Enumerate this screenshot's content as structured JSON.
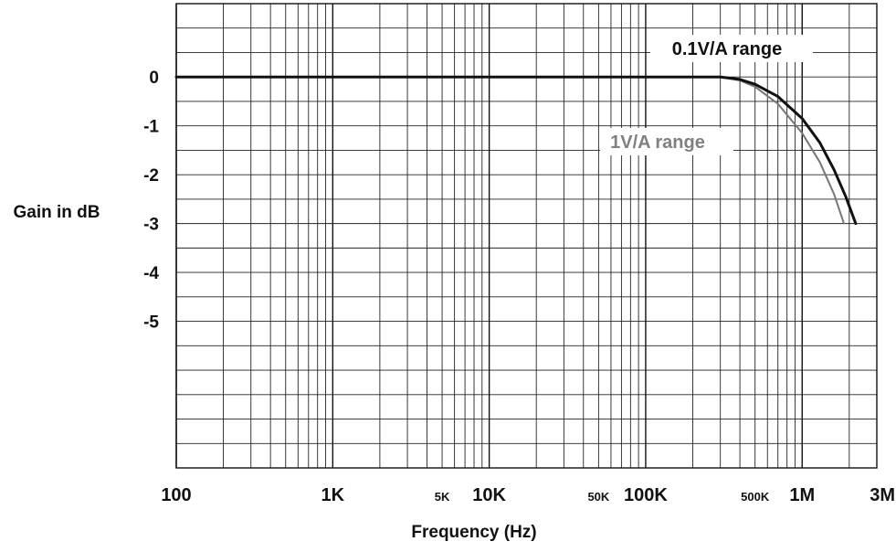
{
  "chart_data": {
    "type": "line",
    "title": "",
    "xlabel": "Frequency (Hz)",
    "ylabel": "Gain in dB",
    "x_scale": "log",
    "xlim": [
      100,
      3000000
    ],
    "ylim": [
      -8,
      1.5
    ],
    "grid": true,
    "x_ticks": [
      {
        "value": 100,
        "label": "100",
        "size": "large"
      },
      {
        "value": 1000,
        "label": "1K",
        "size": "large"
      },
      {
        "value": 5000,
        "label": "5K",
        "size": "small"
      },
      {
        "value": 10000,
        "label": "10K",
        "size": "large"
      },
      {
        "value": 50000,
        "label": "50K",
        "size": "small"
      },
      {
        "value": 100000,
        "label": "100K",
        "size": "large"
      },
      {
        "value": 500000,
        "label": "500K",
        "size": "small"
      },
      {
        "value": 1000000,
        "label": "1M",
        "size": "large"
      },
      {
        "value": 3000000,
        "label": "3M",
        "size": "large"
      }
    ],
    "y_ticks": [
      {
        "value": 0,
        "label": "0"
      },
      {
        "value": -1,
        "label": "-1"
      },
      {
        "value": -2,
        "label": "-2"
      },
      {
        "value": -3,
        "label": "-3"
      },
      {
        "value": -4,
        "label": "-4"
      },
      {
        "value": -5,
        "label": "-5"
      }
    ],
    "series": [
      {
        "name": "0.1V/A range",
        "color": "#111111",
        "x": [
          100,
          1000,
          10000,
          100000,
          300000,
          400000,
          500000,
          700000,
          1000000,
          1300000,
          1600000,
          1900000,
          2200000
        ],
        "y": [
          0,
          0,
          0,
          0,
          0,
          -0.05,
          -0.15,
          -0.4,
          -0.85,
          -1.35,
          -1.9,
          -2.45,
          -3.0
        ]
      },
      {
        "name": "1V/A range",
        "color": "#777777",
        "x": [
          100,
          1000,
          10000,
          100000,
          300000,
          400000,
          500000,
          700000,
          1000000,
          1300000,
          1600000,
          1850000
        ],
        "y": [
          0,
          0,
          0,
          0,
          0,
          -0.07,
          -0.2,
          -0.55,
          -1.15,
          -1.75,
          -2.4,
          -3.0
        ]
      }
    ]
  }
}
